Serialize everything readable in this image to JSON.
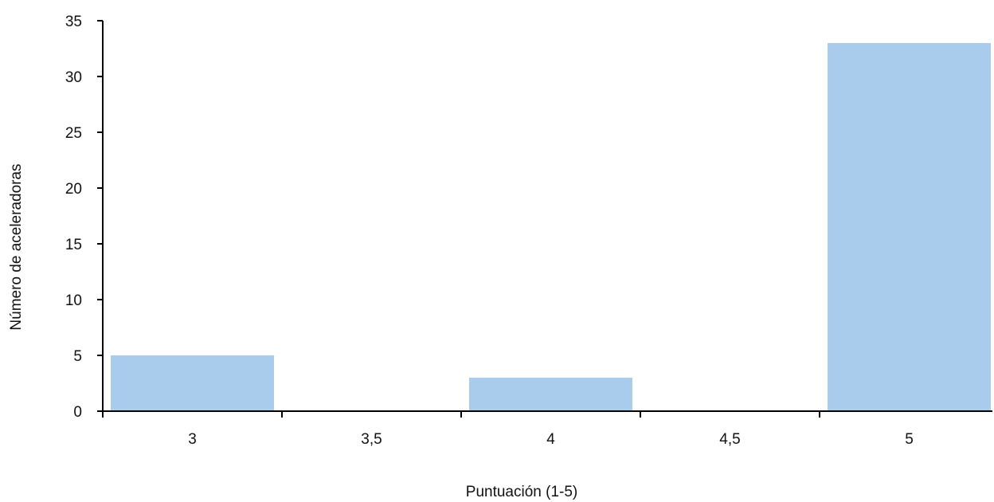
{
  "chart_data": {
    "type": "bar",
    "categories": [
      "3",
      "3,5",
      "4",
      "4,5",
      "5"
    ],
    "values": [
      5,
      0,
      3,
      0,
      33
    ],
    "title": "",
    "xlabel": "Puntuación (1-5)",
    "ylabel": "Número de aceleradoras",
    "ylim": [
      0,
      35
    ],
    "yticks": [
      0,
      5,
      10,
      15,
      20,
      25,
      30,
      35
    ],
    "grid": false,
    "legend": "none",
    "bar_color": "#a9cbec"
  }
}
